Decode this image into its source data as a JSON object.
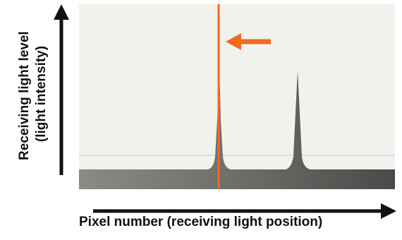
{
  "y_axis_label_lines": [
    "Receiving light level",
    "(light intensity)"
  ],
  "x_axis_label": "Pixel number (receiving light position)",
  "colors": {
    "plot_background": "#f1f1ed",
    "profile_fill": "#5b5b58",
    "marker_line": "#ef6a1f",
    "threshold_line": "#b8d4de",
    "axis_arrow": "#111111"
  },
  "chart_data": {
    "type": "area",
    "peaks": [
      {
        "role": "measured-peak",
        "relative_height": 0.78
      },
      {
        "role": "secondary-peak",
        "relative_height": 0.75
      }
    ],
    "marker": {
      "shape": "vertical-line",
      "arrow_direction": "left"
    }
  }
}
